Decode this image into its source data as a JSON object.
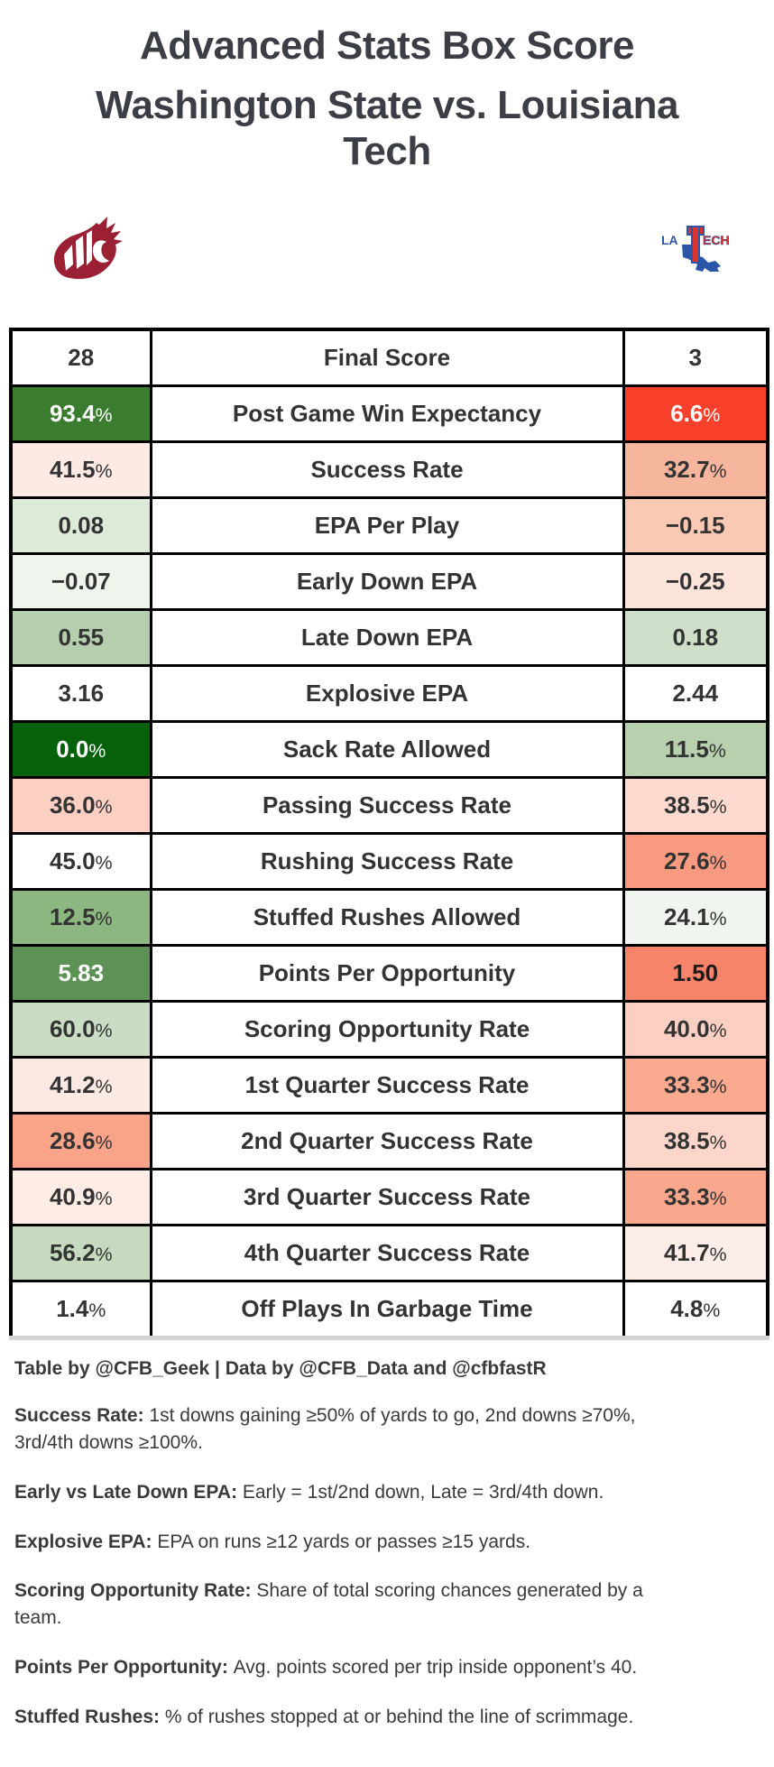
{
  "title": "Advanced Stats Box Score",
  "subtitle": "Washington State vs. Louisiana Tech",
  "teams": {
    "left": "Washington State",
    "right": "Louisiana Tech"
  },
  "logos": {
    "left": "washington-state-cougars-logo",
    "right": "louisiana-tech-bulldogs-logo"
  },
  "colors": {
    "strong_win_green": "#3a7d2e",
    "dark_green": "#06620a",
    "mid_green": "#5d9155",
    "strong_loss_red": "#f8402b",
    "salmon": "#f8836b",
    "wsu_crimson": "#9b2033",
    "latech_blue": "#2b55a7",
    "latech_red": "#d8332f",
    "table_border": "#000000",
    "bottom_rule_gray": "#d4d4d4",
    "text_dark": "#3b3f45"
  },
  "chart_data": {
    "type": "table",
    "columns": [
      "Washington State",
      "Metric",
      "Louisiana Tech"
    ],
    "rows": [
      {
        "left": "28",
        "metric": "Final Score",
        "right": "3",
        "left_bg": "#ffffff",
        "right_bg": "#ffffff",
        "left_color": "#333333",
        "right_color": "#333333"
      },
      {
        "left": "93.4%",
        "metric": "Post Game Win Expectancy",
        "right": "6.6%",
        "left_bg": "#3a7d2e",
        "right_bg": "#f8402b",
        "left_color": "#ffffff",
        "right_color": "#ffffff"
      },
      {
        "left": "41.5%",
        "metric": "Success Rate",
        "right": "32.7%",
        "left_bg": "#fdeae5",
        "right_bg": "#f6b59d",
        "left_color": "#333333",
        "right_color": "#333333"
      },
      {
        "left": "0.08",
        "metric": "EPA Per Play",
        "right": "−0.15",
        "left_bg": "#dde9d9",
        "right_bg": "#f9c9b4",
        "left_color": "#333333",
        "right_color": "#333333"
      },
      {
        "left": "−0.07",
        "metric": "Early Down EPA",
        "right": "−0.25",
        "left_bg": "#eff4ed",
        "right_bg": "#fce4da",
        "left_color": "#333333",
        "right_color": "#333333"
      },
      {
        "left": "0.55",
        "metric": "Late Down EPA",
        "right": "0.18",
        "left_bg": "#b5cfae",
        "right_bg": "#cfdfc9",
        "left_color": "#333333",
        "right_color": "#333333"
      },
      {
        "left": "3.16",
        "metric": "Explosive EPA",
        "right": "2.44",
        "left_bg": "#ffffff",
        "right_bg": "#ffffff",
        "left_color": "#333333",
        "right_color": "#333333"
      },
      {
        "left": "0.0%",
        "metric": "Sack Rate Allowed",
        "right": "11.5%",
        "left_bg": "#06620a",
        "right_bg": "#b7d0ad",
        "left_color": "#ffffff",
        "right_color": "#333333"
      },
      {
        "left": "36.0%",
        "metric": "Passing Success Rate",
        "right": "38.5%",
        "left_bg": "#fbcfc2",
        "right_bg": "#fcdacf",
        "left_color": "#333333",
        "right_color": "#333333"
      },
      {
        "left": "45.0%",
        "metric": "Rushing Success Rate",
        "right": "27.6%",
        "left_bg": "#ffffff",
        "right_bg": "#f79a80",
        "left_color": "#333333",
        "right_color": "#333333"
      },
      {
        "left": "12.5%",
        "metric": "Stuffed Rushes Allowed",
        "right": "24.1%",
        "left_bg": "#8db781",
        "right_bg": "#f1f5ef",
        "left_color": "#333333",
        "right_color": "#333333"
      },
      {
        "left": "5.83",
        "metric": "Points Per Opportunity",
        "right": "1.50",
        "left_bg": "#5d9155",
        "right_bg": "#f8836b",
        "left_color": "#ffffff",
        "right_color": "#1c1c1c"
      },
      {
        "left": "60.0%",
        "metric": "Scoring Opportunity Rate",
        "right": "40.0%",
        "left_bg": "#cadcc4",
        "right_bg": "#fbcfc1",
        "left_color": "#333333",
        "right_color": "#333333"
      },
      {
        "left": "41.2%",
        "metric": "1st Quarter Success Rate",
        "right": "33.3%",
        "left_bg": "#fde9e4",
        "right_bg": "#f9aa8f",
        "left_color": "#333333",
        "right_color": "#333333"
      },
      {
        "left": "28.6%",
        "metric": "2nd Quarter Success Rate",
        "right": "38.5%",
        "left_bg": "#f9a489",
        "right_bg": "#fcd6ca",
        "left_color": "#333333",
        "right_color": "#333333"
      },
      {
        "left": "40.9%",
        "metric": "3rd Quarter Success Rate",
        "right": "33.3%",
        "left_bg": "#fdebe6",
        "right_bg": "#f9a88d",
        "left_color": "#333333",
        "right_color": "#333333"
      },
      {
        "left": "56.2%",
        "metric": "4th Quarter Success Rate",
        "right": "41.7%",
        "left_bg": "#c7dabf",
        "right_bg": "#fdede8",
        "left_color": "#333333",
        "right_color": "#333333"
      },
      {
        "left": "1.4%",
        "metric": "Off Plays In Garbage Time",
        "right": "4.8%",
        "left_bg": "#ffffff",
        "right_bg": "#ffffff",
        "left_color": "#333333",
        "right_color": "#333333"
      }
    ]
  },
  "footer": {
    "credit": "Table by @CFB_Geek | Data by @CFB_Data and @cfbfastR",
    "notes": [
      {
        "label": "Success Rate",
        "text": "1st downs gaining ≥50% of yards to go, 2nd downs ≥70%, 3rd/4th downs ≥100%."
      },
      {
        "label": "Early vs Late Down EPA",
        "text": "Early = 1st/2nd down, Late = 3rd/4th down."
      },
      {
        "label": "Explosive EPA",
        "text": "EPA on runs ≥12 yards or passes ≥15 yards."
      },
      {
        "label": "Scoring Opportunity Rate",
        "text": "Share of total scoring chances generated by a team."
      },
      {
        "label": "Points Per Opportunity",
        "text": "Avg. points scored per trip inside opponent’s 40."
      },
      {
        "label": "Stuffed Rushes",
        "text": "% of rushes stopped at or behind the line of scrimmage."
      }
    ]
  }
}
